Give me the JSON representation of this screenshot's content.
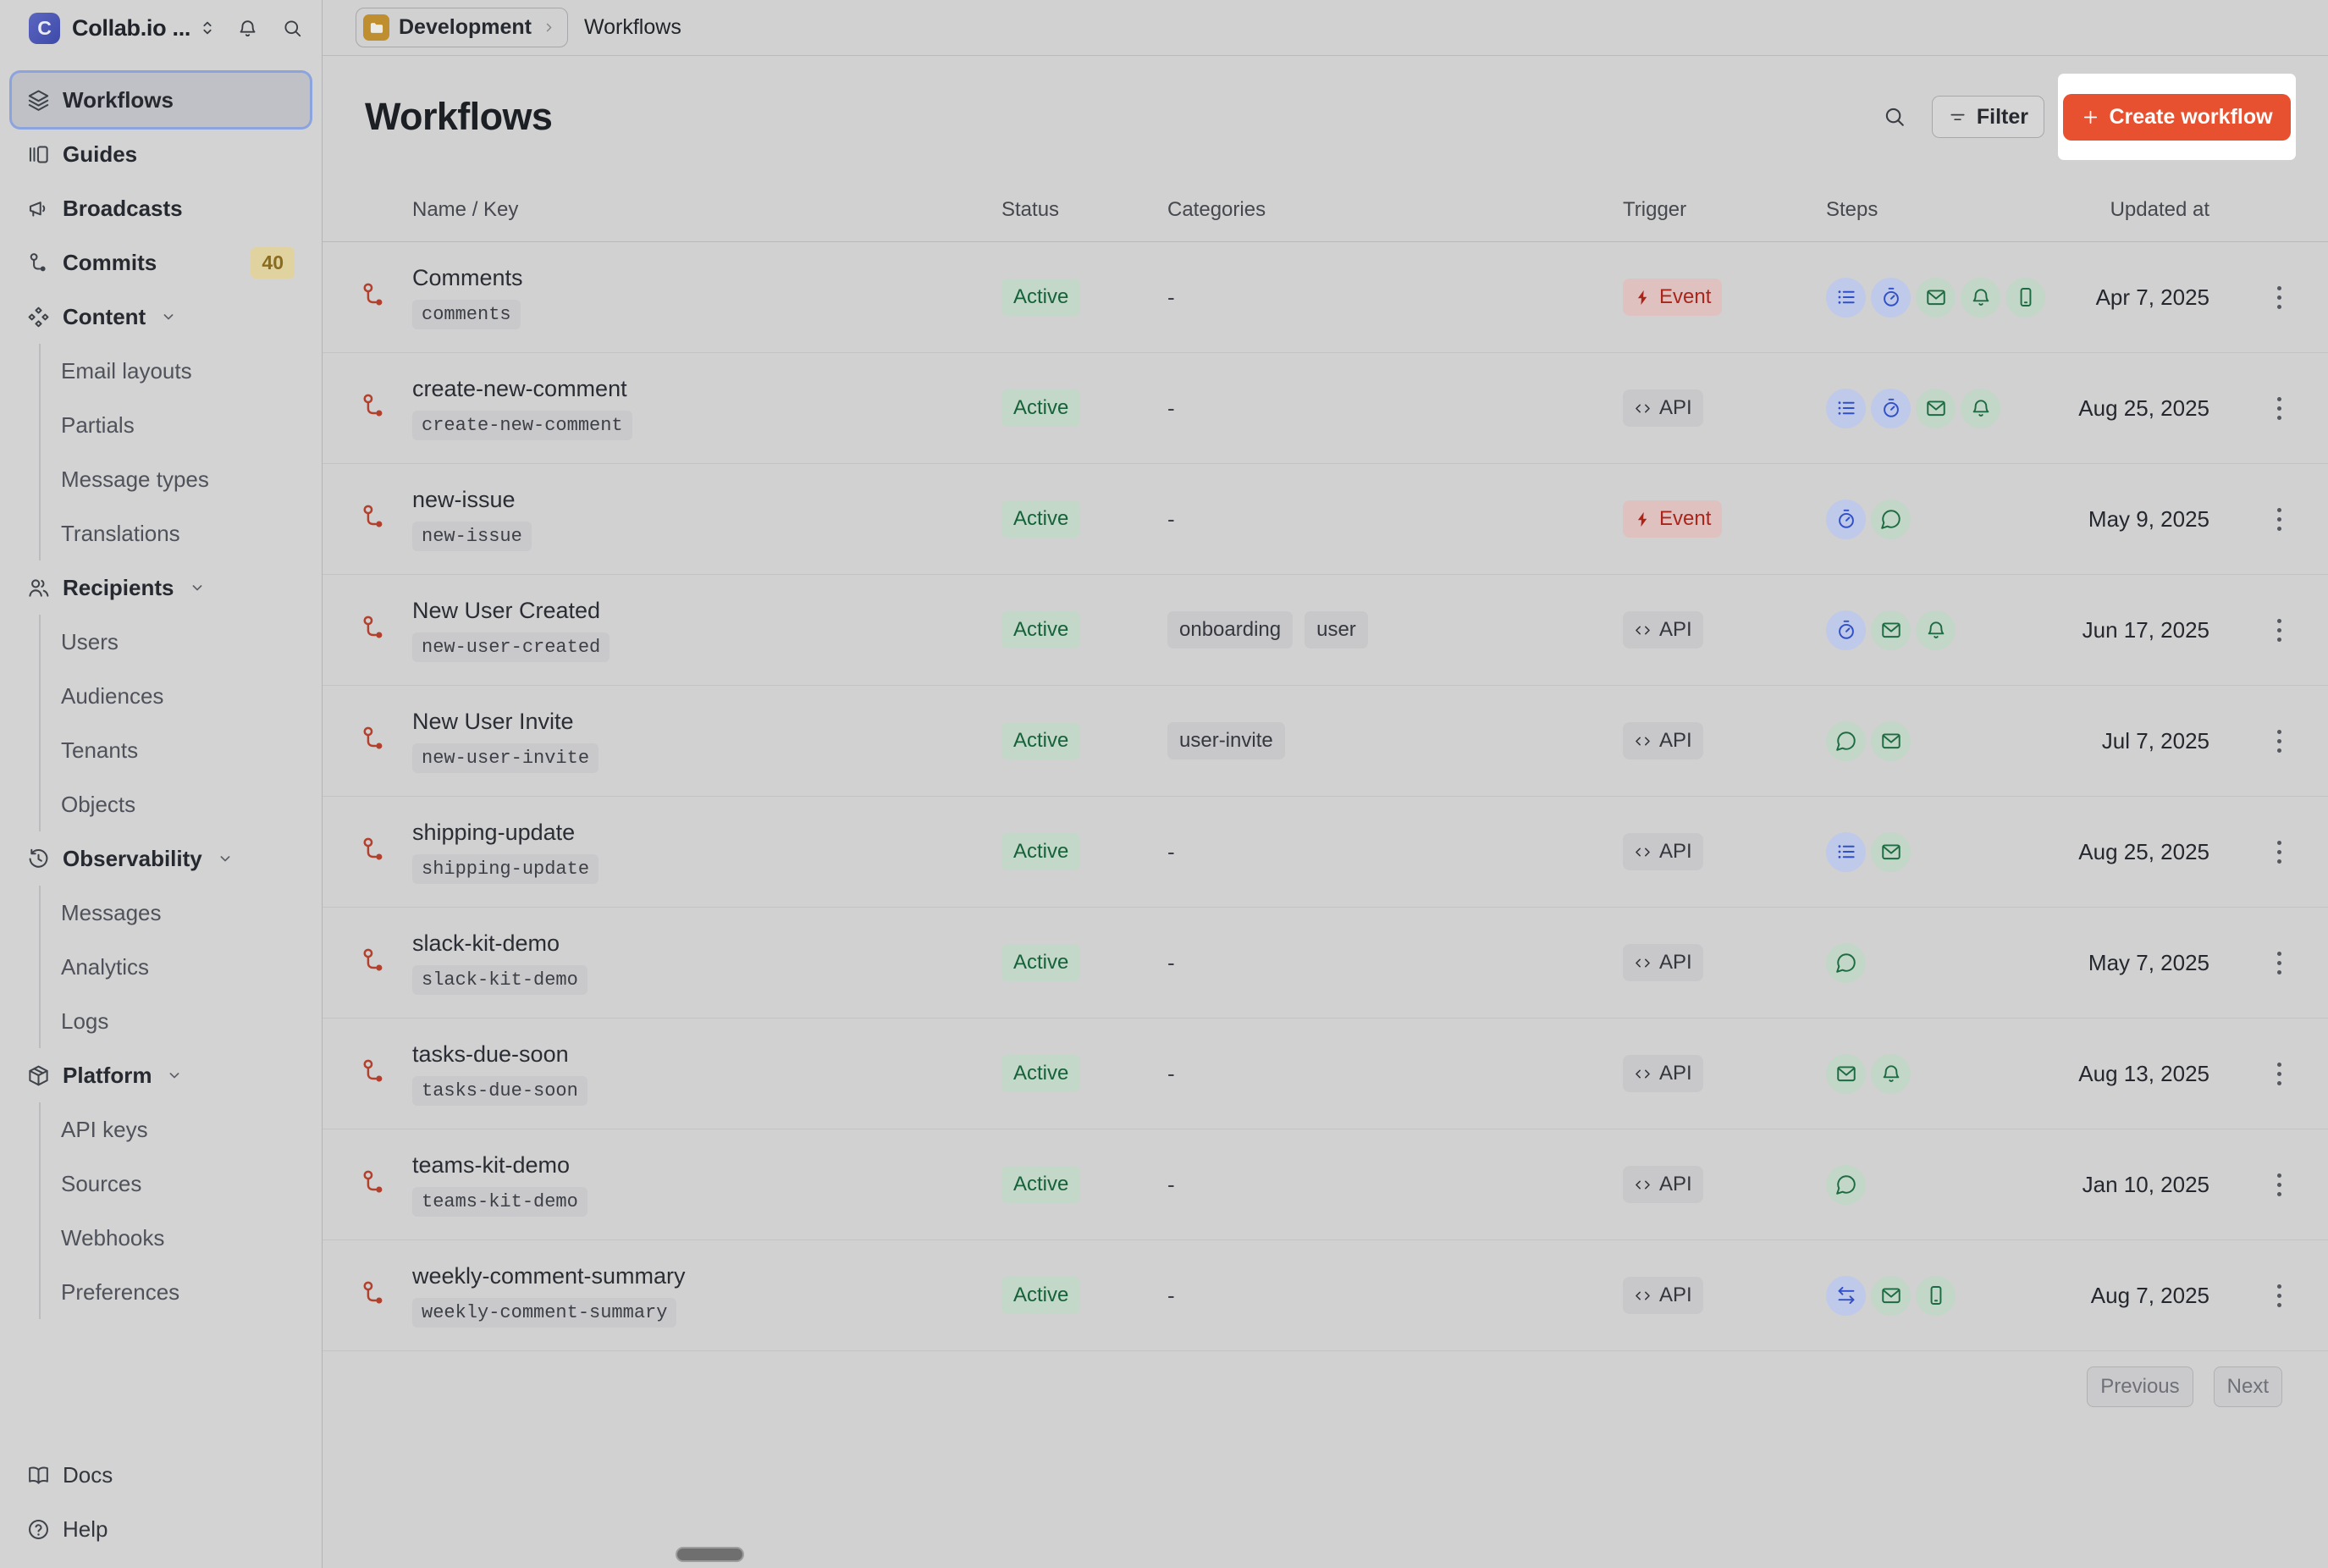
{
  "topbar": {
    "workspace": {
      "initial": "C",
      "name": "Collab.io ..."
    },
    "environment": "Development",
    "page": "Workflows"
  },
  "sidebar": {
    "items": [
      {
        "label": "Workflows",
        "icon": "layers-icon",
        "active": true
      },
      {
        "label": "Guides",
        "icon": "panels-icon"
      },
      {
        "label": "Broadcasts",
        "icon": "megaphone-icon"
      },
      {
        "label": "Commits",
        "icon": "commit-icon",
        "badge": "40"
      },
      {
        "label": "Content",
        "icon": "diamonds-icon",
        "children": [
          "Email layouts",
          "Partials",
          "Message types",
          "Translations"
        ]
      },
      {
        "label": "Recipients",
        "icon": "users-icon",
        "children": [
          "Users",
          "Audiences",
          "Tenants",
          "Objects"
        ]
      },
      {
        "label": "Observability",
        "icon": "history-clock-icon",
        "children": [
          "Messages",
          "Analytics",
          "Logs"
        ]
      },
      {
        "label": "Platform",
        "icon": "package-icon",
        "children": [
          "API keys",
          "Sources",
          "Webhooks",
          "Preferences"
        ]
      }
    ],
    "footer": [
      {
        "label": "Docs",
        "icon": "book-icon"
      },
      {
        "label": "Help",
        "icon": "help-circle-icon"
      }
    ]
  },
  "main": {
    "title": "Workflows",
    "filter_label": "Filter",
    "create_label": "Create workflow"
  },
  "table": {
    "columns": [
      "Name / Key",
      "Status",
      "Categories",
      "Trigger",
      "Steps",
      "Updated at"
    ],
    "empty_value": "-",
    "rows": [
      {
        "name": "Comments",
        "key": "comments",
        "status": "Active",
        "categories": [],
        "trigger": "Event",
        "steps": [
          "batch-list",
          "delay-timer",
          "email",
          "bell",
          "phone"
        ],
        "updated": "Apr 7, 2025"
      },
      {
        "name": "create-new-comment",
        "key": "create-new-comment",
        "status": "Active",
        "categories": [],
        "trigger": "API",
        "steps": [
          "batch-list",
          "delay-timer",
          "email",
          "bell"
        ],
        "updated": "Aug 25, 2025"
      },
      {
        "name": "new-issue",
        "key": "new-issue",
        "status": "Active",
        "categories": [],
        "trigger": "Event",
        "steps": [
          "delay-timer",
          "chat"
        ],
        "updated": "May 9, 2025"
      },
      {
        "name": "New User Created",
        "key": "new-user-created",
        "status": "Active",
        "categories": [
          "onboarding",
          "user"
        ],
        "trigger": "API",
        "steps": [
          "delay-timer",
          "email",
          "bell"
        ],
        "updated": "Jun 17, 2025"
      },
      {
        "name": "New User Invite",
        "key": "new-user-invite",
        "status": "Active",
        "categories": [
          "user-invite"
        ],
        "trigger": "API",
        "steps": [
          "chat",
          "email"
        ],
        "updated": "Jul 7, 2025"
      },
      {
        "name": "shipping-update",
        "key": "shipping-update",
        "status": "Active",
        "categories": [],
        "trigger": "API",
        "steps": [
          "batch-list",
          "email"
        ],
        "updated": "Aug 25, 2025"
      },
      {
        "name": "slack-kit-demo",
        "key": "slack-kit-demo",
        "status": "Active",
        "categories": [],
        "trigger": "API",
        "steps": [
          "chat"
        ],
        "updated": "May 7, 2025"
      },
      {
        "name": "tasks-due-soon",
        "key": "tasks-due-soon",
        "status": "Active",
        "categories": [],
        "trigger": "API",
        "steps": [
          "email",
          "bell"
        ],
        "updated": "Aug 13, 2025"
      },
      {
        "name": "teams-kit-demo",
        "key": "teams-kit-demo",
        "status": "Active",
        "categories": [],
        "trigger": "API",
        "steps": [
          "chat"
        ],
        "updated": "Jan 10, 2025"
      },
      {
        "name": "weekly-comment-summary",
        "key": "weekly-comment-summary",
        "status": "Active",
        "categories": [],
        "trigger": "API",
        "steps": [
          "swap-arrows",
          "email",
          "phone"
        ],
        "updated": "Aug 7, 2025"
      }
    ]
  },
  "steps_meta": {
    "batch-list": {
      "icon": "list",
      "tone": "blue"
    },
    "delay-timer": {
      "icon": "timer",
      "tone": "blue"
    },
    "swap-arrows": {
      "icon": "swap",
      "tone": "blue"
    },
    "chat": {
      "icon": "chat",
      "tone": "green"
    },
    "email": {
      "icon": "mail",
      "tone": "green"
    },
    "bell": {
      "icon": "bell",
      "tone": "green"
    },
    "phone": {
      "icon": "phone",
      "tone": "green"
    }
  },
  "pagination": {
    "previous": "Previous",
    "next": "Next"
  },
  "colors": {
    "accent": "#e7512f",
    "highlight": "#ffffff",
    "status_active_bg": "#c3d8c8",
    "status_active_text": "#15623a",
    "event_bg": "#dfc2c0",
    "event_text": "#aa241a",
    "step_blue": "#3150c8",
    "step_green": "#1d6b42",
    "row_icon": "#b2402c"
  }
}
